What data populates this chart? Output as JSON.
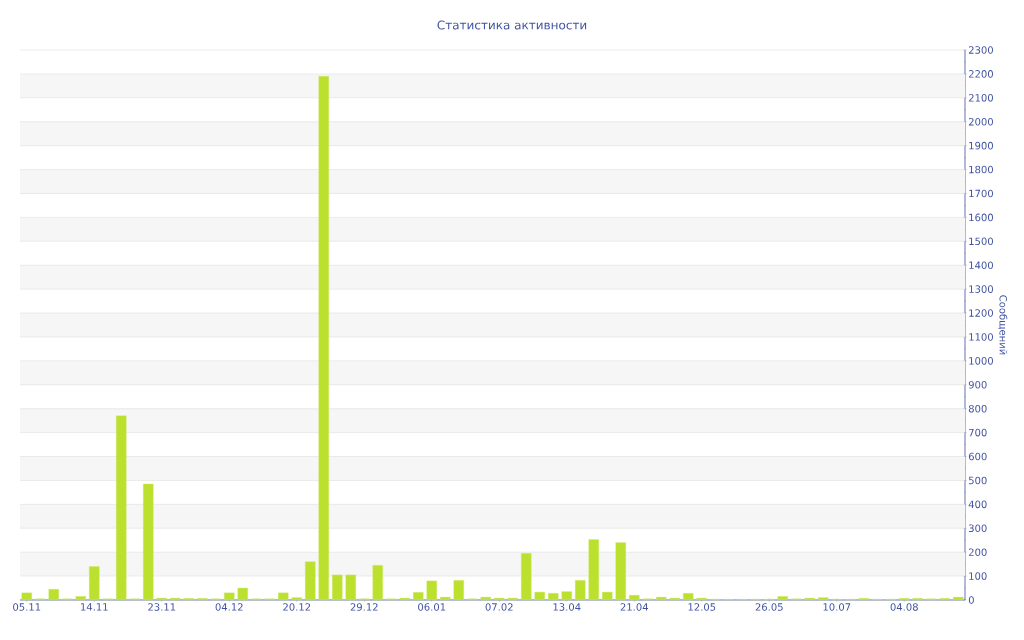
{
  "chart_data": {
    "type": "bar",
    "title": "Статистика активности",
    "ylabel": "Сообщений",
    "categories": [
      "05.11",
      null,
      null,
      null,
      null,
      "14.11",
      null,
      null,
      null,
      null,
      "23.11",
      null,
      null,
      null,
      null,
      "04.12",
      null,
      null,
      null,
      null,
      "20.12",
      null,
      null,
      null,
      null,
      "29.12",
      null,
      null,
      null,
      null,
      "06.01",
      null,
      null,
      null,
      null,
      "07.02",
      null,
      null,
      null,
      null,
      "13.04",
      null,
      null,
      null,
      null,
      "21.04",
      null,
      null,
      null,
      null,
      "12.05",
      null,
      null,
      null,
      null,
      "26.05",
      null,
      null,
      null,
      null,
      "10.07",
      null,
      null,
      null,
      null,
      "04.08",
      null,
      null,
      null,
      null
    ],
    "values": [
      30,
      5,
      45,
      5,
      15,
      140,
      5,
      770,
      5,
      485,
      8,
      8,
      7,
      7,
      5,
      30,
      50,
      5,
      5,
      30,
      10,
      160,
      2190,
      105,
      105,
      5,
      145,
      5,
      8,
      32,
      80,
      12,
      82,
      5,
      12,
      8,
      8,
      195,
      33,
      28,
      35,
      82,
      253,
      33,
      240,
      20,
      5,
      12,
      8,
      28,
      8,
      3,
      3,
      3,
      3,
      3,
      15,
      5,
      8,
      10,
      3,
      3,
      7,
      3,
      3,
      7,
      7,
      5,
      7,
      12
    ],
    "color": "#bbe02e",
    "ylim": [
      0,
      2300
    ],
    "yticks": [
      0,
      100,
      200,
      300,
      400,
      500,
      600,
      700,
      800,
      900,
      1000,
      1100,
      1200,
      1300,
      1400,
      1500,
      1600,
      1700,
      1800,
      1900,
      2000,
      2100,
      2200,
      2300
    ],
    "grid": "y"
  }
}
